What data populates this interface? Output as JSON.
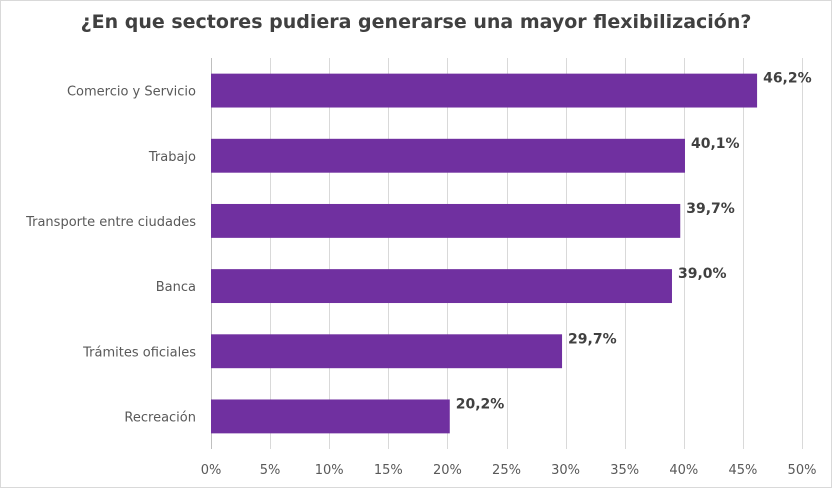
{
  "chart_data": {
    "type": "bar",
    "orientation": "horizontal",
    "title": "¿En que sectores pudiera generarse una mayor flexibilización?",
    "categories": [
      "Comercio y Servicio",
      "Trabajo",
      "Transporte entre ciudades",
      "Banca",
      "Trámites oficiales",
      "Recreación"
    ],
    "values": [
      46.2,
      40.1,
      39.7,
      39.0,
      29.7,
      20.2
    ],
    "data_labels": [
      "46,2%",
      "40,1%",
      "39,7%",
      "39,0%",
      "29,7%",
      "20,2%"
    ],
    "xlim": [
      0,
      50
    ],
    "xticks": [
      0,
      5,
      10,
      15,
      20,
      25,
      30,
      35,
      40,
      45,
      50
    ],
    "xtick_labels": [
      "0%",
      "5%",
      "10%",
      "15%",
      "20%",
      "25%",
      "30%",
      "35%",
      "40%",
      "45%",
      "50%"
    ],
    "xlabel": "",
    "ylabel": "",
    "grid": true,
    "legend": "none",
    "bar_color": "#7030a0"
  }
}
